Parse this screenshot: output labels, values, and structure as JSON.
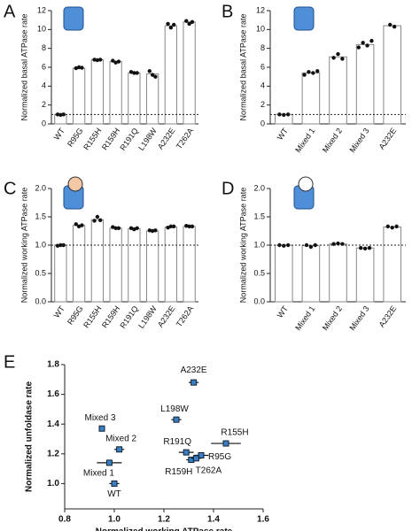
{
  "chart_data": [
    {
      "type": "bar",
      "label": "A",
      "ylabel": "Normalized basal ATPase rate",
      "categories": [
        "WT",
        "R95G",
        "R155H",
        "R159H",
        "R191Q",
        "L198W",
        "A232E",
        "T262A"
      ],
      "values": [
        1.0,
        5.9,
        6.8,
        6.6,
        5.4,
        5.3,
        10.4,
        10.8
      ],
      "replicates": [
        [
          1.0,
          0.95,
          1.0
        ],
        [
          5.9,
          6.0,
          5.95
        ],
        [
          6.8,
          6.75,
          6.8
        ],
        [
          6.7,
          6.5,
          6.6
        ],
        [
          5.5,
          5.4,
          5.4
        ],
        [
          5.6,
          5.2,
          5.0
        ],
        [
          10.6,
          10.2,
          10.5
        ],
        [
          10.9,
          10.6,
          10.8
        ]
      ],
      "ylim": [
        0,
        12
      ],
      "yticks": [
        0,
        2,
        4,
        6,
        8,
        10,
        12
      ],
      "reference_line": 1,
      "color": "#ffffff"
    },
    {
      "type": "bar",
      "label": "B",
      "ylabel": "Normalized basal ATPase rate",
      "categories": [
        "WT",
        "Mixed 1",
        "Mixed 2",
        "Mixed 3",
        "A232E"
      ],
      "values": [
        1.0,
        5.4,
        7.1,
        8.4,
        10.4
      ],
      "replicates": [
        [
          1.0,
          0.95,
          1.0
        ],
        [
          5.2,
          5.5,
          5.4,
          5.6
        ],
        [
          7.0,
          7.4,
          6.9
        ],
        [
          8.1,
          8.6,
          8.3,
          8.8
        ],
        [
          10.5,
          10.3
        ]
      ],
      "ylim": [
        0,
        12
      ],
      "yticks": [
        0,
        2,
        4,
        6,
        8,
        10,
        12
      ],
      "reference_line": 1,
      "color": "#ffffff"
    },
    {
      "type": "bar",
      "label": "C",
      "ylabel": "Normalized working ATPase rate",
      "categories": [
        "WT",
        "R95G",
        "R155H",
        "R159H",
        "R191Q",
        "L198W",
        "A232E",
        "T262A"
      ],
      "values": [
        1.0,
        1.35,
        1.45,
        1.3,
        1.29,
        1.25,
        1.32,
        1.33
      ],
      "replicates": [
        [
          0.99,
          1.0,
          1.0
        ],
        [
          1.37,
          1.33,
          1.35
        ],
        [
          1.43,
          1.5,
          1.44
        ],
        [
          1.32,
          1.3,
          1.3
        ],
        [
          1.3,
          1.28,
          1.3
        ],
        [
          1.26,
          1.25,
          1.26
        ],
        [
          1.31,
          1.33,
          1.33
        ],
        [
          1.34,
          1.33,
          1.33
        ]
      ],
      "ylim": [
        0,
        2
      ],
      "yticks": [
        {
          "value": 0,
          "label": "0.0"
        },
        {
          "value": 0.5,
          "label": "0.5"
        },
        {
          "value": 1,
          "label": "1.0"
        },
        {
          "value": 1.5,
          "label": "1.5"
        },
        {
          "value": 2,
          "label": "2.0"
        }
      ],
      "reference_line": 1,
      "color": "#ffffff"
    },
    {
      "type": "bar",
      "label": "D",
      "ylabel": "Normalized working ATPase rate",
      "categories": [
        "WT",
        "Mixed 1",
        "Mixed 2",
        "Mixed 3",
        "A232E"
      ],
      "values": [
        1.0,
        0.99,
        1.02,
        0.95,
        1.32
      ],
      "replicates": [
        [
          1.0,
          0.99,
          1.0
        ],
        [
          1.0,
          0.97,
          1.0
        ],
        [
          1.02,
          1.03,
          1.02
        ],
        [
          0.95,
          0.94,
          0.95
        ],
        [
          1.33,
          1.31,
          1.33
        ]
      ],
      "ylim": [
        0,
        2
      ],
      "yticks": [
        {
          "value": 0,
          "label": "0.0"
        },
        {
          "value": 0.5,
          "label": "0.5"
        },
        {
          "value": 1,
          "label": "1.0"
        },
        {
          "value": 1.5,
          "label": "1.5"
        },
        {
          "value": 2,
          "label": "2.0"
        }
      ],
      "reference_line": 1,
      "color": "#ffffff"
    },
    {
      "type": "scatter",
      "label": "E",
      "xlabel": "Normalized working ATPase rate",
      "ylabel": "Normalized unfoldase rate",
      "names": [
        "WT",
        "Mixed 1",
        "Mixed 2",
        "Mixed 3",
        "L198W",
        "A232E",
        "R191Q",
        "R95G",
        "R155H",
        "R159H",
        "T262A"
      ],
      "x": [
        1.0,
        0.98,
        1.02,
        0.95,
        1.25,
        1.32,
        1.29,
        1.35,
        1.45,
        1.31,
        1.33
      ],
      "y": [
        1.0,
        1.14,
        1.23,
        1.37,
        1.43,
        1.68,
        1.21,
        1.19,
        1.27,
        1.16,
        1.17
      ],
      "xerr": [
        0.02,
        0.05,
        0.02,
        0.01,
        0.02,
        0.02,
        0.03,
        0.03,
        0.06,
        0.02,
        0.02
      ],
      "yerr": [
        0.01,
        0.01,
        0.01,
        0.01,
        0.02,
        0.02,
        0.02,
        0.02,
        0.02,
        0.01,
        0.01
      ],
      "color": "#3a7fc4",
      "xlim": [
        0.8,
        1.6
      ],
      "xticks": [
        {
          "value": 0.8,
          "label": "0.8"
        },
        {
          "value": 1,
          "label": "1.0"
        },
        {
          "value": 1.2,
          "label": "1.2"
        },
        {
          "value": 1.4,
          "label": "1.4"
        },
        {
          "value": 1.6,
          "label": "1.6"
        }
      ],
      "ylim": [
        0.83,
        1.8
      ],
      "yticks": [
        {
          "value": 1,
          "label": "1.0"
        },
        {
          "value": 1.2,
          "label": "1.2"
        },
        {
          "value": 1.4,
          "label": "1.4"
        },
        {
          "value": 1.6,
          "label": "1.6"
        },
        {
          "value": 1.8,
          "label": "1.8"
        }
      ]
    }
  ]
}
